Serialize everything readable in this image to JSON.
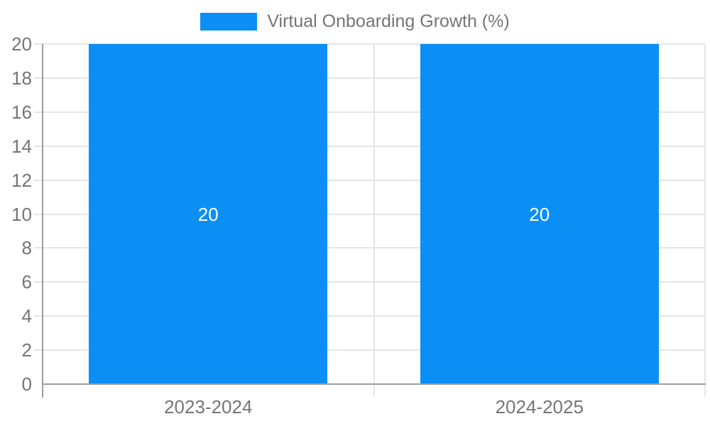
{
  "chart_data": {
    "type": "bar",
    "title": "",
    "legend": {
      "position": "top",
      "label": "Virtual Onboarding Growth (%)"
    },
    "categories": [
      "2023-2024",
      "2024-2025"
    ],
    "series": [
      {
        "name": "Virtual Onboarding Growth (%)",
        "values": [
          20,
          20
        ]
      }
    ],
    "bar_value_labels": [
      "20",
      "20"
    ],
    "yticks": [
      0,
      2,
      4,
      6,
      8,
      10,
      12,
      14,
      16,
      18,
      20
    ],
    "ylim": [
      0,
      20
    ],
    "grid": true,
    "colors": {
      "bar": "#0b8ff5",
      "bar_label": "#ffffff",
      "axis_line": "#9e9e9e",
      "gridline": "#e5e5e5",
      "tick_label": "#757575",
      "legend_text": "#757575",
      "background": "#ffffff"
    }
  }
}
